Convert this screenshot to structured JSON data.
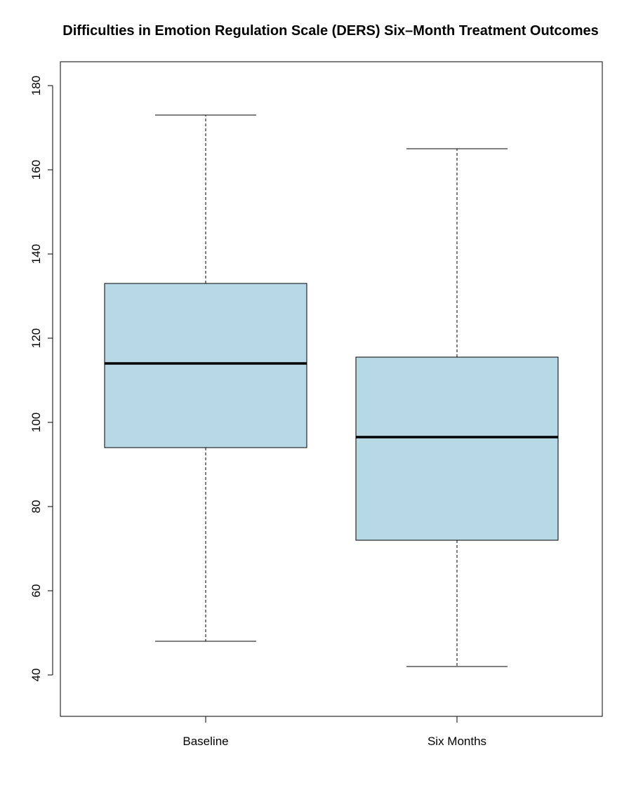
{
  "chart_data": {
    "type": "boxplot",
    "title": "Difficulties in Emotion Regulation Scale (DERS) Six–Month Treatment Outcomes",
    "xlabel": "",
    "ylabel": "",
    "ylim": [
      30,
      185
    ],
    "y_ticks": [
      40,
      60,
      80,
      100,
      120,
      140,
      160,
      180
    ],
    "y_tick_labels": [
      "40",
      "60",
      "80",
      "100",
      "120",
      "140",
      "160",
      "180"
    ],
    "categories": [
      "Baseline",
      "Six Months"
    ],
    "boxes": [
      {
        "category": "Baseline",
        "min": 48,
        "q1": 94,
        "median": 114,
        "q3": 133,
        "max": 173
      },
      {
        "category": "Six Months",
        "min": 42,
        "q1": 72,
        "median": 96.5,
        "q3": 115.5,
        "max": 165
      }
    ],
    "box_fill": "#b7d9e5",
    "grid": false,
    "legend": "none"
  }
}
